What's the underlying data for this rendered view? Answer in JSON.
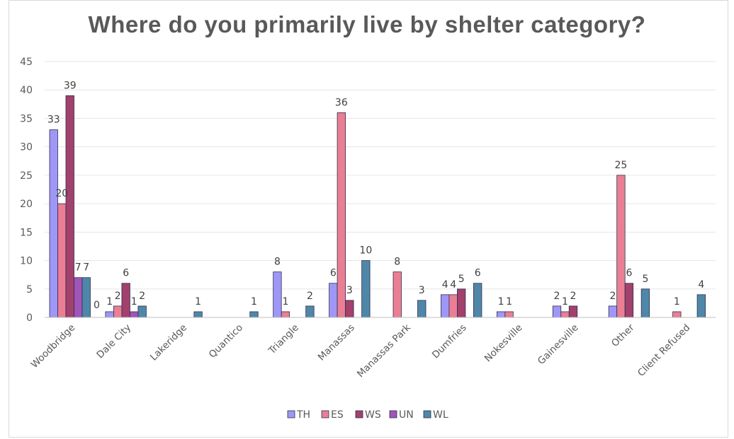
{
  "chart_data": {
    "type": "bar",
    "title": "Where do you primarily live by shelter category?",
    "xlabel": "",
    "ylabel": "",
    "ylim": [
      0,
      45
    ],
    "yticks": [
      0,
      5,
      10,
      15,
      20,
      25,
      30,
      35,
      40,
      45
    ],
    "grid": true,
    "legend_position": "bottom",
    "categories": [
      "Woodbridge",
      "Dale City",
      "Lakeridge",
      "Quantico",
      "Triangle",
      "Manassas",
      "Manassas Park",
      "Dumfries",
      "Nokesville",
      "Gainesville",
      "Other",
      "Client Refused"
    ],
    "series": [
      {
        "name": "TH",
        "color": "#9f97f5",
        "values": [
          33,
          1,
          null,
          null,
          8,
          6,
          null,
          4,
          1,
          2,
          2,
          null
        ]
      },
      {
        "name": "ES",
        "color": "#ea7f94",
        "values": [
          20,
          2,
          null,
          null,
          1,
          36,
          8,
          4,
          1,
          1,
          25,
          1
        ]
      },
      {
        "name": "WS",
        "color": "#a2416b",
        "values": [
          39,
          6,
          null,
          null,
          null,
          3,
          null,
          5,
          null,
          2,
          6,
          null
        ]
      },
      {
        "name": "UN",
        "color": "#a055b8",
        "values": [
          7,
          1,
          null,
          null,
          null,
          null,
          null,
          null,
          null,
          null,
          null,
          null
        ]
      },
      {
        "name": "WL",
        "color": "#4f87a8",
        "values": [
          7,
          2,
          1,
          1,
          2,
          10,
          3,
          6,
          null,
          null,
          5,
          4
        ]
      }
    ],
    "extra_labels": [
      {
        "category": "Woodbridge",
        "text": "0"
      }
    ]
  }
}
